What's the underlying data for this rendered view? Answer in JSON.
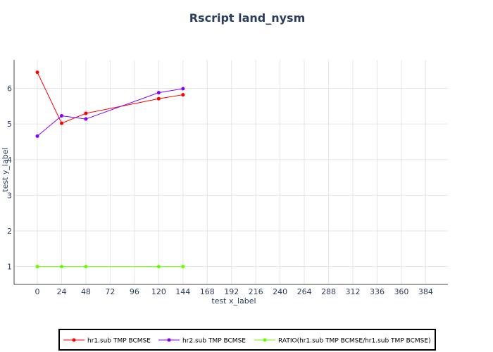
{
  "chart_data": {
    "type": "line",
    "title": "Rscript land_nysm",
    "xlabel": "test x_label",
    "ylabel": "test y_label",
    "x_ticks": [
      "0",
      "24",
      "48",
      "72",
      "96",
      "120",
      "144",
      "168",
      "192",
      "216",
      "240",
      "264",
      "288",
      "312",
      "336",
      "360",
      "384"
    ],
    "y_ticks": [
      "1",
      "2",
      "3",
      "4",
      "5",
      "6"
    ],
    "xlim": [
      -23,
      406
    ],
    "ylim": [
      0.5,
      6.8
    ],
    "grid": true,
    "legend_position": "bottom",
    "series": [
      {
        "name": "hr1.sub TMP BCMSE",
        "color": "#ff0000",
        "x": [
          0,
          24,
          48,
          120,
          144
        ],
        "y": [
          6.45,
          5.02,
          5.3,
          5.71,
          5.82
        ]
      },
      {
        "name": "hr2.sub TMP BCMSE",
        "color": "#8000ff",
        "x": [
          0,
          24,
          48,
          120,
          144
        ],
        "y": [
          4.66,
          5.23,
          5.14,
          5.88,
          5.99
        ]
      },
      {
        "name": "RATIO(hr1.sub TMP BCMSE/hr1.sub TMP BCMSE)",
        "color": "#66ff00",
        "x": [
          0,
          24,
          48,
          120,
          144
        ],
        "y": [
          1.0,
          1.0,
          1.0,
          1.0,
          1.0
        ]
      }
    ]
  }
}
